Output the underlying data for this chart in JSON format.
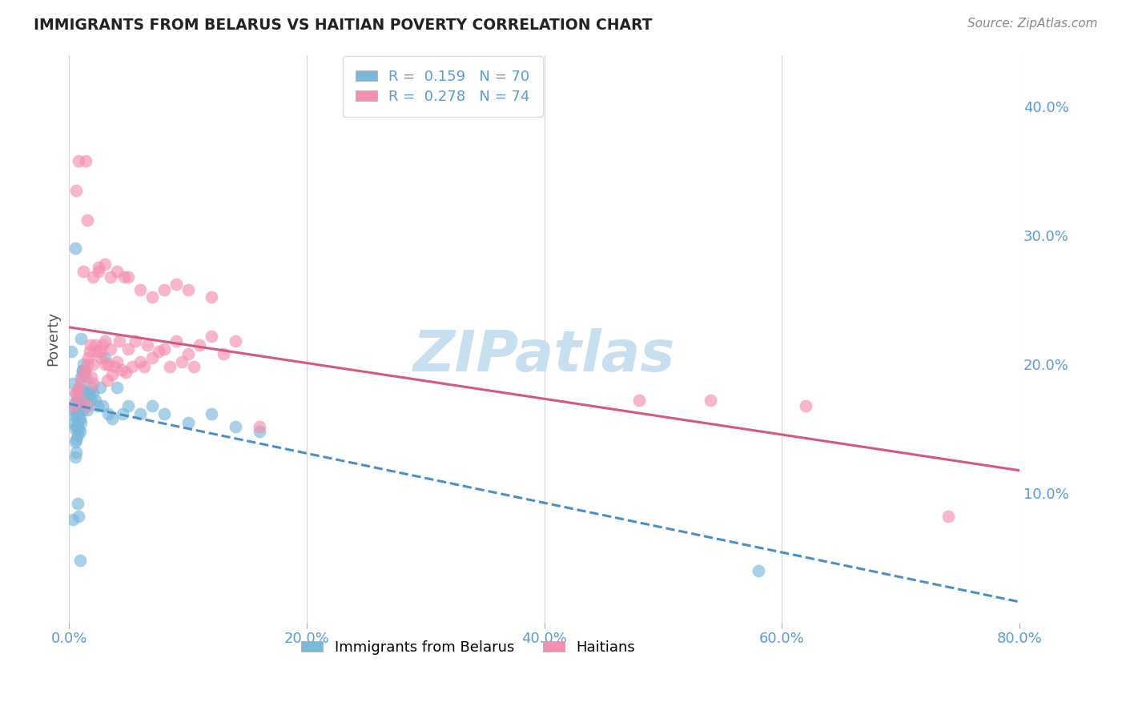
{
  "title": "IMMIGRANTS FROM BELARUS VS HAITIAN POVERTY CORRELATION CHART",
  "source": "Source: ZipAtlas.com",
  "ylabel": "Poverty",
  "xlim": [
    0.0,
    0.8
  ],
  "ylim": [
    0.0,
    0.44
  ],
  "R_belarus": 0.159,
  "N_belarus": 70,
  "R_haitians": 0.278,
  "N_haitians": 74,
  "color_blue": "#7ab8d9",
  "color_pink": "#f48fb1",
  "color_blue_line": "#4a90c4",
  "color_pink_line": "#d45a7a",
  "color_axis_labels": "#5b9bd5",
  "background_color": "#ffffff",
  "grid_color": "#cccccc",
  "watermark_color": "#c8dff0",
  "belarus_x": [
    0.002,
    0.003,
    0.004,
    0.004,
    0.005,
    0.005,
    0.005,
    0.005,
    0.005,
    0.006,
    0.006,
    0.006,
    0.006,
    0.006,
    0.007,
    0.007,
    0.007,
    0.007,
    0.008,
    0.008,
    0.008,
    0.008,
    0.009,
    0.009,
    0.009,
    0.009,
    0.01,
    0.01,
    0.01,
    0.01,
    0.011,
    0.011,
    0.011,
    0.012,
    0.012,
    0.013,
    0.013,
    0.014,
    0.015,
    0.015,
    0.016,
    0.017,
    0.018,
    0.019,
    0.02,
    0.022,
    0.024,
    0.026,
    0.028,
    0.03,
    0.033,
    0.036,
    0.04,
    0.045,
    0.05,
    0.06,
    0.07,
    0.08,
    0.1,
    0.12,
    0.14,
    0.16,
    0.003,
    0.005,
    0.007,
    0.008,
    0.009,
    0.01,
    0.011,
    0.58
  ],
  "belarus_y": [
    0.21,
    0.185,
    0.165,
    0.155,
    0.17,
    0.16,
    0.15,
    0.14,
    0.29,
    0.172,
    0.162,
    0.152,
    0.142,
    0.132,
    0.175,
    0.165,
    0.155,
    0.145,
    0.18,
    0.17,
    0.16,
    0.15,
    0.178,
    0.168,
    0.158,
    0.148,
    0.19,
    0.18,
    0.17,
    0.155,
    0.195,
    0.18,
    0.165,
    0.2,
    0.175,
    0.195,
    0.175,
    0.19,
    0.178,
    0.165,
    0.175,
    0.178,
    0.172,
    0.182,
    0.178,
    0.172,
    0.168,
    0.182,
    0.168,
    0.205,
    0.162,
    0.158,
    0.182,
    0.162,
    0.168,
    0.162,
    0.168,
    0.162,
    0.155,
    0.162,
    0.152,
    0.148,
    0.08,
    0.128,
    0.092,
    0.082,
    0.048,
    0.22,
    0.195,
    0.04
  ],
  "haitians_x": [
    0.004,
    0.006,
    0.008,
    0.01,
    0.012,
    0.013,
    0.014,
    0.015,
    0.016,
    0.017,
    0.018,
    0.019,
    0.02,
    0.02,
    0.022,
    0.023,
    0.025,
    0.026,
    0.027,
    0.028,
    0.03,
    0.03,
    0.032,
    0.033,
    0.035,
    0.036,
    0.038,
    0.04,
    0.042,
    0.044,
    0.046,
    0.048,
    0.05,
    0.053,
    0.056,
    0.06,
    0.063,
    0.066,
    0.07,
    0.075,
    0.08,
    0.085,
    0.09,
    0.095,
    0.1,
    0.105,
    0.11,
    0.12,
    0.13,
    0.14,
    0.006,
    0.008,
    0.012,
    0.015,
    0.02,
    0.025,
    0.03,
    0.035,
    0.04,
    0.05,
    0.06,
    0.07,
    0.08,
    0.09,
    0.1,
    0.12,
    0.16,
    0.005,
    0.01,
    0.015,
    0.48,
    0.54,
    0.62,
    0.74
  ],
  "haitians_y": [
    0.168,
    0.178,
    0.182,
    0.188,
    0.192,
    0.195,
    0.358,
    0.2,
    0.205,
    0.21,
    0.215,
    0.19,
    0.2,
    0.185,
    0.215,
    0.21,
    0.275,
    0.21,
    0.205,
    0.215,
    0.218,
    0.2,
    0.188,
    0.2,
    0.212,
    0.192,
    0.198,
    0.202,
    0.218,
    0.196,
    0.268,
    0.194,
    0.212,
    0.198,
    0.218,
    0.202,
    0.198,
    0.215,
    0.205,
    0.21,
    0.212,
    0.198,
    0.218,
    0.202,
    0.208,
    0.198,
    0.215,
    0.222,
    0.208,
    0.218,
    0.335,
    0.358,
    0.272,
    0.312,
    0.268,
    0.272,
    0.278,
    0.268,
    0.272,
    0.268,
    0.258,
    0.252,
    0.258,
    0.262,
    0.258,
    0.252,
    0.152,
    0.178,
    0.172,
    0.168,
    0.172,
    0.172,
    0.168,
    0.082
  ]
}
